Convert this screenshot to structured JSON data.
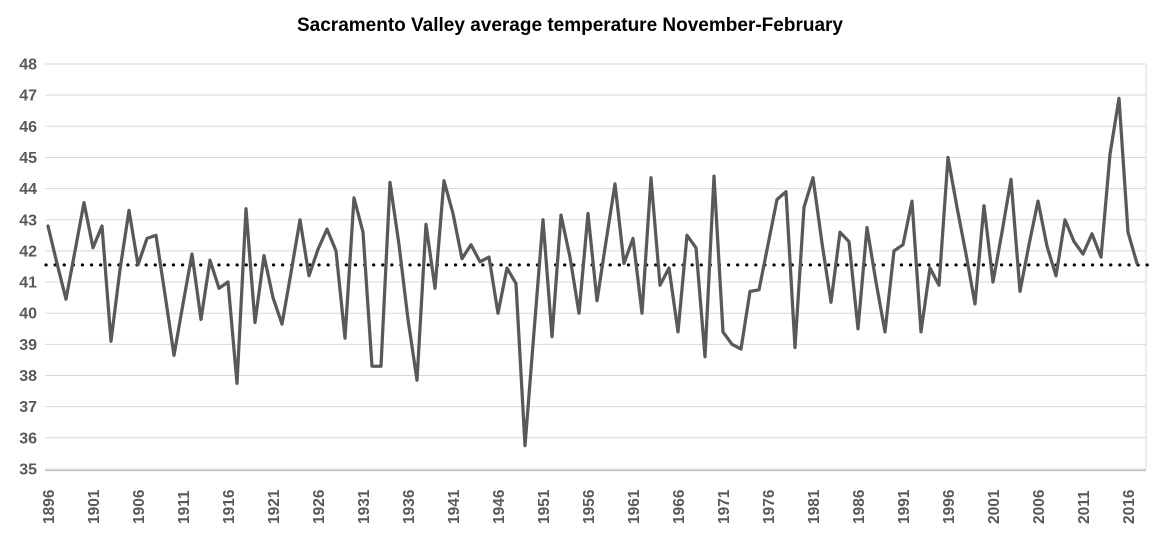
{
  "chart_data": {
    "type": "line",
    "title": "Sacramento Valley average temperature November-February",
    "xlabel": "",
    "ylabel": "",
    "start_year": 1896,
    "end_year": 2017,
    "values": [
      42.8,
      41.6,
      40.45,
      42.0,
      43.55,
      42.1,
      42.8,
      39.1,
      41.4,
      43.3,
      41.55,
      42.4,
      42.5,
      40.6,
      38.65,
      40.3,
      41.9,
      39.8,
      41.7,
      40.8,
      41.0,
      37.75,
      43.35,
      39.7,
      41.85,
      40.5,
      39.65,
      41.3,
      43.0,
      41.2,
      42.05,
      42.7,
      42.0,
      39.2,
      43.7,
      42.6,
      38.3,
      38.3,
      44.2,
      42.2,
      39.8,
      37.85,
      42.85,
      40.8,
      44.25,
      43.2,
      41.75,
      42.2,
      41.65,
      41.8,
      40.0,
      41.45,
      40.95,
      35.75,
      39.4,
      43.0,
      39.25,
      43.15,
      41.8,
      40.0,
      43.2,
      40.4,
      42.3,
      44.15,
      41.6,
      42.4,
      40.0,
      44.35,
      40.9,
      41.45,
      39.4,
      42.5,
      42.1,
      38.6,
      44.4,
      39.4,
      39.0,
      38.85,
      40.7,
      40.75,
      42.2,
      43.65,
      43.9,
      38.9,
      43.4,
      44.35,
      42.25,
      40.35,
      42.6,
      42.3,
      39.5,
      42.75,
      41.0,
      39.4,
      42.0,
      42.2,
      43.6,
      39.4,
      41.45,
      40.9,
      45.0,
      43.4,
      41.9,
      40.3,
      43.45,
      41.0,
      42.6,
      44.3,
      40.7,
      42.2,
      43.6,
      42.15,
      41.2,
      43.0,
      42.3,
      41.9,
      42.55,
      41.8,
      45.1,
      46.9,
      42.6,
      41.6
    ],
    "x_tick_labels": [
      "1896",
      "1901",
      "1906",
      "1911",
      "1916",
      "1921",
      "1926",
      "1931",
      "1936",
      "1941",
      "1946",
      "1951",
      "1956",
      "1961",
      "1966",
      "1971",
      "1976",
      "1981",
      "1986",
      "1991",
      "1996",
      "2001",
      "2006",
      "2011",
      "2016"
    ],
    "x_tick_step_years": 5,
    "y_tick_labels": [
      "48",
      "47",
      "46",
      "45",
      "44",
      "43",
      "42",
      "41",
      "40",
      "39",
      "38",
      "37",
      "36",
      "35"
    ],
    "ylim": [
      35,
      48
    ],
    "grid": "horizontal",
    "legend": "none",
    "average_line": {
      "value": 41.55,
      "style": "dotted",
      "color": "#000000"
    },
    "series_color": "#595959",
    "gridline_color": "#d9d9d9",
    "axis_line_color": "#bfbfbf",
    "tick_label_color": "#595959"
  }
}
